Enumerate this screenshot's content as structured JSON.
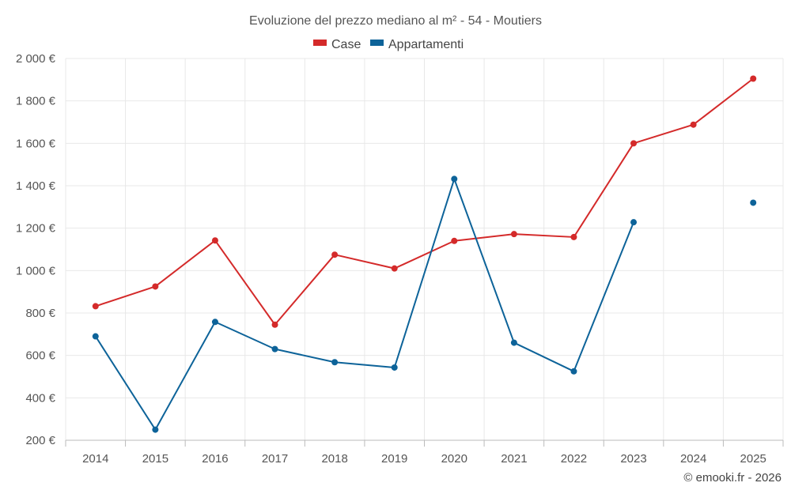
{
  "chart_data": {
    "type": "line",
    "title": "Evoluzione del prezzo mediano al m² - 54 - Moutiers",
    "xlabel": "",
    "ylabel": "",
    "categories": [
      "2014",
      "2015",
      "2016",
      "2017",
      "2018",
      "2019",
      "2020",
      "2021",
      "2022",
      "2023",
      "2024",
      "2025"
    ],
    "ylim": [
      200,
      2000
    ],
    "yticks": [
      200,
      400,
      600,
      800,
      1000,
      1200,
      1400,
      1600,
      1800,
      2000
    ],
    "ytick_labels": [
      "200 €",
      "400 €",
      "600 €",
      "800 €",
      "1 000 €",
      "1 200 €",
      "1 400 €",
      "1 600 €",
      "1 800 €",
      "2 000 €"
    ],
    "grid": true,
    "legend_position": "top-center",
    "series": [
      {
        "name": "Case",
        "color": "#d42a2a",
        "values": [
          832,
          925,
          1142,
          745,
          1075,
          1010,
          1140,
          1172,
          1158,
          1600,
          1688,
          1905
        ]
      },
      {
        "name": "Appartamenti",
        "color": "#0d6399",
        "values": [
          690,
          250,
          758,
          630,
          568,
          543,
          1432,
          660,
          525,
          1228,
          null,
          1320
        ]
      }
    ]
  },
  "credit": "© emooki.fr - 2026"
}
